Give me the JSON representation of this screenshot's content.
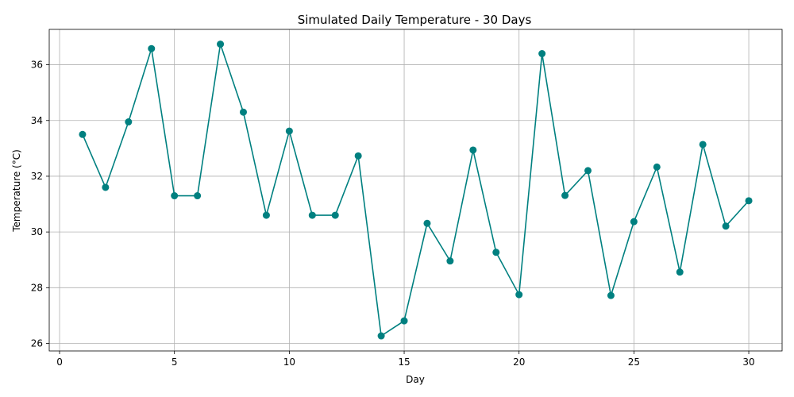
{
  "chart_data": {
    "type": "line",
    "title": "Simulated Daily Temperature - 30 Days",
    "xlabel": "Day",
    "ylabel": "Temperature (°C)",
    "xlim": [
      -0.45,
      31.45
    ],
    "ylim": [
      25.73,
      37.27
    ],
    "xticks": [
      0,
      5,
      10,
      15,
      20,
      25,
      30
    ],
    "yticks": [
      26,
      28,
      30,
      32,
      34,
      36
    ],
    "grid": true,
    "color": "#008080",
    "marker": "circle",
    "x": [
      1,
      2,
      3,
      4,
      5,
      6,
      7,
      8,
      9,
      10,
      11,
      12,
      13,
      14,
      15,
      16,
      17,
      18,
      19,
      20,
      21,
      22,
      23,
      24,
      25,
      26,
      27,
      28,
      29,
      30
    ],
    "y": [
      33.5,
      31.6,
      33.95,
      36.58,
      31.3,
      31.3,
      36.74,
      34.3,
      30.6,
      33.62,
      30.6,
      30.6,
      32.73,
      26.27,
      26.81,
      30.31,
      28.96,
      32.94,
      29.27,
      27.75,
      36.4,
      31.31,
      32.2,
      27.72,
      30.37,
      32.33,
      28.56,
      33.14,
      30.21,
      31.12
    ]
  }
}
